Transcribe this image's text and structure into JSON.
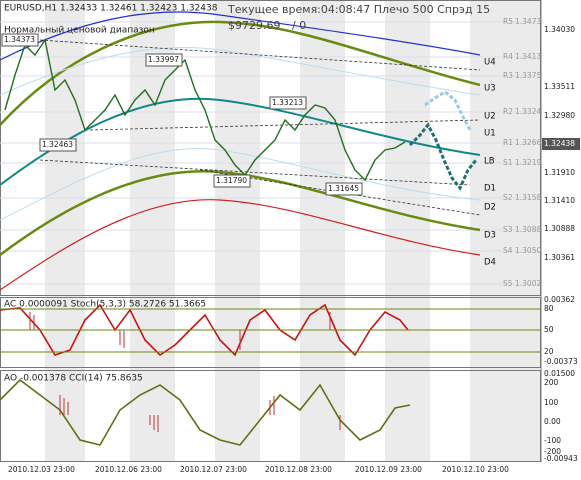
{
  "header": {
    "symbol": "EURUSD,H1",
    "ohlc": "1.32433 1.32461 1.32423 1.32438",
    "server_time": "Текущее время:04:08:47 Плечо 500 Спрэд 15",
    "balance": "$9729.69",
    "ratio": "/ 0",
    "channel_name": "Нормальный ценовой диапазон"
  },
  "price_axis": [
    "1.34030",
    "1.33511",
    "1.32980",
    "1.32438",
    "1.31910",
    "1.31410",
    "1.30888",
    "1.30361"
  ],
  "pivot_levels": [
    {
      "name": "R5",
      "price": "1.3473"
    },
    {
      "name": "R4",
      "price": "1.3413"
    },
    {
      "name": "R3",
      "price": "1.3375"
    },
    {
      "name": "R2",
      "price": "1.3324"
    },
    {
      "name": "R1",
      "price": "1.3266"
    },
    {
      "name": "S1",
      "price": "1.3219"
    },
    {
      "name": "S2",
      "price": "1.3158"
    },
    {
      "name": "S3",
      "price": "1.3088"
    },
    {
      "name": "S4",
      "price": "1.3050"
    },
    {
      "name": "S5",
      "price": "1.3002"
    }
  ],
  "channel_levels": [
    "U4",
    "U3",
    "U2",
    "U1",
    "LB",
    "D1",
    "D2",
    "D3",
    "D4"
  ],
  "price_callouts": [
    "1.34373",
    "1.33997",
    "1.33213",
    "1.32463",
    "1.31790",
    "1.31645"
  ],
  "indicator1": {
    "label": "AC 0.0000091 Stoch(5,3,3) 58.2726 51.3665",
    "axis": [
      "0.00362",
      "80",
      "50",
      "20",
      "-0.00373"
    ]
  },
  "indicator2": {
    "label": "AO -0.001378 CCI(14) 75.8635",
    "axis": [
      "0.01500",
      "200",
      "100",
      "0.00",
      "-100",
      "-200",
      "-0.00943"
    ]
  },
  "time_axis": [
    "2010.12.03 23:00",
    "2010.12.06 23:00",
    "2010.12.07 23:00",
    "2010.12.08 23:00",
    "2010.12.09 23:00",
    "2010.12.10 23:00"
  ]
}
